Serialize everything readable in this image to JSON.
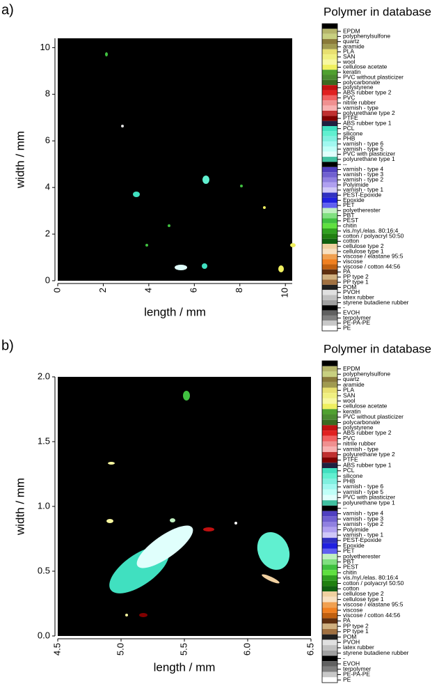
{
  "chart_data": [
    {
      "type": "image",
      "panel_label": "a)",
      "xlabel": "length / mm",
      "ylabel": "width / mm",
      "xlim": [
        0,
        10.3
      ],
      "ylim": [
        0,
        10.4
      ],
      "xticks": [
        0,
        2,
        4,
        6,
        8,
        10
      ],
      "yticks": [
        0,
        2,
        4,
        6,
        8,
        10
      ],
      "background": "#000000",
      "legend_title": "Polymer in database",
      "legend": [
        {
          "name": "EPDM",
          "color": "#b5b56a"
        },
        {
          "name": "polyphenylsulfone",
          "color": "#c8d080"
        },
        {
          "name": "quartz",
          "color": "#8a7a3a"
        },
        {
          "name": "aramide",
          "color": "#a09a50"
        },
        {
          "name": "PLA",
          "color": "#e8e070"
        },
        {
          "name": "SAN",
          "color": "#f0f080"
        },
        {
          "name": "wool",
          "color": "#f8f8a0"
        },
        {
          "name": "cellulose acetate",
          "color": "#f0f060"
        },
        {
          "name": "keratin",
          "color": "#50a030"
        },
        {
          "name": "PVC without plasticizer",
          "color": "#4a8a30"
        },
        {
          "name": "polycarbonate",
          "color": "#3a6a20"
        },
        {
          "name": "polystyrene",
          "color": "#c01010"
        },
        {
          "name": "ABS rubber type 2",
          "color": "#e02020"
        },
        {
          "name": "PVC",
          "color": "#f06060"
        },
        {
          "name": "nitrile rubber",
          "color": "#f09090"
        },
        {
          "name": "varnish - type",
          "color": "#f8b0b0"
        },
        {
          "name": "polyurethane type 2",
          "color": "#c03030"
        },
        {
          "name": "PTFE",
          "color": "#800000"
        },
        {
          "name": "ABS rubber type 1",
          "color": "#202040"
        },
        {
          "name": "PCL",
          "color": "#40e0c0"
        },
        {
          "name": "silicone",
          "color": "#60f0d0"
        },
        {
          "name": "PHB",
          "color": "#80f0e0"
        },
        {
          "name": "varnish - type 6",
          "color": "#a0f8f0"
        },
        {
          "name": "varnish - type 5",
          "color": "#c0fff8"
        },
        {
          "name": "PVC with plasticizer",
          "color": "#e0fffc"
        },
        {
          "name": "polyurethane type 1",
          "color": "#40c0a0"
        },
        {
          "name": "--",
          "color": "#000000"
        },
        {
          "name": "varnish - type 4",
          "color": "#5040c0"
        },
        {
          "name": "varnish - type 3",
          "color": "#7060d0"
        },
        {
          "name": "varnish - type 2",
          "color": "#9080e0"
        },
        {
          "name": "Polyimide",
          "color": "#b0a0f0"
        },
        {
          "name": "varnish - type 1",
          "color": "#d0c8f8"
        },
        {
          "name": "PEST-Epoxide",
          "color": "#3030c0"
        },
        {
          "name": "Epoxide",
          "color": "#2020e0"
        },
        {
          "name": "PET",
          "color": "#6060f0"
        },
        {
          "name": "polyetherester",
          "color": "#c0f0c0"
        },
        {
          "name": "PBT",
          "color": "#80e080"
        },
        {
          "name": "PEST",
          "color": "#40c040"
        },
        {
          "name": "chitin",
          "color": "#60e040"
        },
        {
          "name": "vis./nyl./elas. 80:16:4",
          "color": "#30a020"
        },
        {
          "name": "cotton / polyacryl 50:50",
          "color": "#208010"
        },
        {
          "name": "cotton",
          "color": "#106010"
        },
        {
          "name": "cellulose type 2",
          "color": "#f0d0a0"
        },
        {
          "name": "cellulose type 1",
          "color": "#f8e0c0"
        },
        {
          "name": "viscose / elastane 95:5",
          "color": "#f0a050"
        },
        {
          "name": "viscose",
          "color": "#f08020"
        },
        {
          "name": "viscose / cotton 44:56",
          "color": "#c06010"
        },
        {
          "name": "PA",
          "color": "#603010"
        },
        {
          "name": "PP type 2",
          "color": "#d0b080"
        },
        {
          "name": "PP type 1",
          "color": "#a07040"
        },
        {
          "name": "POM",
          "color": "#202020"
        },
        {
          "name": "PVOH",
          "color": "#e0e0e0"
        },
        {
          "name": "latex rubber",
          "color": "#c0c0c0"
        },
        {
          "name": "styrene butadiene rubber",
          "color": "#a0a0a0"
        },
        {
          "name": "-",
          "color": "#000000"
        },
        {
          "name": "EVOH",
          "color": "#606060"
        },
        {
          "name": "terpolymer",
          "color": "#808080"
        },
        {
          "name": "PE-PA-PE",
          "color": "#c8c8c8"
        },
        {
          "name": "PE",
          "color": "#ffffff"
        }
      ]
    },
    {
      "type": "image",
      "panel_label": "b)",
      "xlabel": "length / mm",
      "ylabel": "width / mm",
      "xlim": [
        4.5,
        6.5
      ],
      "ylim": [
        0,
        2
      ],
      "xticks": [
        4.5,
        {
          "value": 5,
          "label": "5.0"
        },
        5.5,
        {
          "value": 6,
          "label": "6.0"
        },
        6.5
      ],
      "yticks": [
        {
          "value": 0,
          "label": "0.0"
        },
        0.5,
        {
          "value": 1,
          "label": "1.0"
        },
        1.5,
        {
          "value": 2,
          "label": "2.0"
        }
      ],
      "background": "#000000",
      "legend_title": "Polymer in database",
      "legend": [
        {
          "name": "EPDM",
          "color": "#b5b56a"
        },
        {
          "name": "polyphenylsulfone",
          "color": "#c8d080"
        },
        {
          "name": "quartz",
          "color": "#8a7a3a"
        },
        {
          "name": "aramide",
          "color": "#a09a50"
        },
        {
          "name": "PLA",
          "color": "#e8e070"
        },
        {
          "name": "SAN",
          "color": "#f0f080"
        },
        {
          "name": "wool",
          "color": "#f8f8a0"
        },
        {
          "name": "cellulose acetate",
          "color": "#f0f060"
        },
        {
          "name": "keratin",
          "color": "#50a030"
        },
        {
          "name": "PVC without plasticizer",
          "color": "#4a8a30"
        },
        {
          "name": "polycarbonate",
          "color": "#3a6a20"
        },
        {
          "name": "polystyrene",
          "color": "#c01010"
        },
        {
          "name": "ABS rubber type 2",
          "color": "#e02020"
        },
        {
          "name": "PVC",
          "color": "#f06060"
        },
        {
          "name": "nitrile rubber",
          "color": "#f09090"
        },
        {
          "name": "varnish - type",
          "color": "#f8b0b0"
        },
        {
          "name": "polyurethane type 2",
          "color": "#c03030"
        },
        {
          "name": "PTFE",
          "color": "#800000"
        },
        {
          "name": "ABS rubber type 1",
          "color": "#202040"
        },
        {
          "name": "PCL",
          "color": "#40e0c0"
        },
        {
          "name": "silicone",
          "color": "#60f0d0"
        },
        {
          "name": "PHB",
          "color": "#80f0e0"
        },
        {
          "name": "varnish - type 6",
          "color": "#a0f8f0"
        },
        {
          "name": "varnish - type 5",
          "color": "#c0fff8"
        },
        {
          "name": "PVC with plasticizer",
          "color": "#e0fffc"
        },
        {
          "name": "polyurethane type 1",
          "color": "#40c0a0"
        },
        {
          "name": "--",
          "color": "#000000"
        },
        {
          "name": "varnish - type 4",
          "color": "#5040c0"
        },
        {
          "name": "varnish - type 3",
          "color": "#7060d0"
        },
        {
          "name": "varnish - type 2",
          "color": "#9080e0"
        },
        {
          "name": "Polyimide",
          "color": "#b0a0f0"
        },
        {
          "name": "varnish - type 1",
          "color": "#d0c8f8"
        },
        {
          "name": "PEST-Epoxide",
          "color": "#3030c0"
        },
        {
          "name": "Epoxide",
          "color": "#2020e0"
        },
        {
          "name": "PET",
          "color": "#6060f0"
        },
        {
          "name": "polyetherester",
          "color": "#c0f0c0"
        },
        {
          "name": "PBT",
          "color": "#80e080"
        },
        {
          "name": "PEST",
          "color": "#40c040"
        },
        {
          "name": "chitin",
          "color": "#60e040"
        },
        {
          "name": "vis./nyl./elas. 80:16:4",
          "color": "#30a020"
        },
        {
          "name": "cotton / polyacryl 50:50",
          "color": "#208010"
        },
        {
          "name": "cotton",
          "color": "#106010"
        },
        {
          "name": "cellulose type 2",
          "color": "#f0d0a0"
        },
        {
          "name": "cellulose type 1",
          "color": "#f8e0c0"
        },
        {
          "name": "viscose / elastane 95:5",
          "color": "#f0a050"
        },
        {
          "name": "viscose",
          "color": "#f08020"
        },
        {
          "name": "viscose / cotton 44:56",
          "color": "#c06010"
        },
        {
          "name": "PA",
          "color": "#603010"
        },
        {
          "name": "PP type 2",
          "color": "#d0b080"
        },
        {
          "name": "PP type 1",
          "color": "#a07040"
        },
        {
          "name": "POM",
          "color": "#202020"
        },
        {
          "name": "PVOH",
          "color": "#e0e0e0"
        },
        {
          "name": "latex rubber",
          "color": "#c0c0c0"
        },
        {
          "name": "styrene butadiene rubber",
          "color": "#a0a0a0"
        },
        {
          "name": "-",
          "color": "#000000"
        },
        {
          "name": "EVOH",
          "color": "#606060"
        },
        {
          "name": "terpolymer",
          "color": "#808080"
        },
        {
          "name": "PE-PA-PE",
          "color": "#c8c8c8"
        },
        {
          "name": "PE",
          "color": "#ffffff"
        }
      ]
    }
  ]
}
